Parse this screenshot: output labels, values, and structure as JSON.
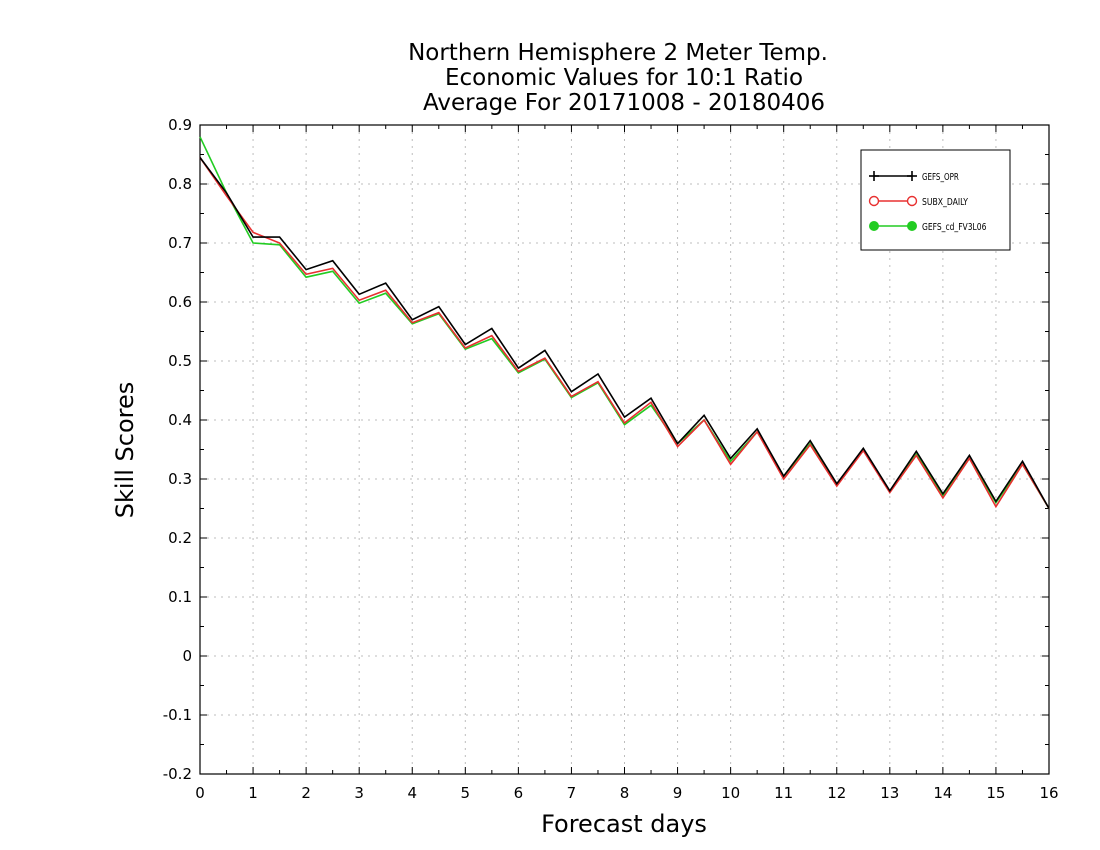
{
  "chart_data": {
    "type": "line",
    "title": [
      "Northern Hemisphere 2 Meter Temp.",
      "Economic Values for 10:1 Ratio",
      "Average For 20171008 - 20180406"
    ],
    "xlabel": "Forecast days",
    "ylabel": "Skill Scores",
    "xlim": [
      0,
      16
    ],
    "ylim": [
      -0.2,
      0.9
    ],
    "x_ticks": [
      "0",
      "1",
      "2",
      "3",
      "4",
      "5",
      "6",
      "7",
      "8",
      "9",
      "10",
      "11",
      "12",
      "13",
      "14",
      "15",
      "16"
    ],
    "y_ticks": [
      "0.9",
      "0.8",
      "0.7",
      "0.6",
      "0.5",
      "0.4",
      "0.3",
      "0.2",
      "0.1",
      "0",
      "-0.1",
      "-0.2"
    ],
    "grid": true,
    "legend_position": "top-right",
    "x": [
      0,
      0.5,
      1,
      1.5,
      2,
      2.5,
      3,
      3.5,
      4,
      4.5,
      5,
      5.5,
      6,
      6.5,
      7,
      7.5,
      8,
      8.5,
      9,
      9.5,
      10,
      10.5,
      11,
      11.5,
      12,
      12.5,
      13,
      13.5,
      14,
      14.5,
      15,
      15.5,
      16
    ],
    "series": [
      {
        "name": "GEFS_OPR",
        "color": "#000000",
        "marker": "plus",
        "values": [
          0.845,
          0.785,
          0.71,
          0.71,
          0.655,
          0.67,
          0.613,
          0.632,
          0.57,
          0.592,
          0.528,
          0.555,
          0.488,
          0.518,
          0.448,
          0.478,
          0.405,
          0.437,
          0.36,
          0.408,
          0.335,
          0.385,
          0.305,
          0.365,
          0.292,
          0.352,
          0.28,
          0.347,
          0.275,
          0.34,
          0.262,
          0.33,
          0.25
        ]
      },
      {
        "name": "SUBX_DAILY",
        "color": "#e83030",
        "marker": "open-circle",
        "values": [
          0.845,
          0.78,
          0.718,
          0.7,
          0.647,
          0.657,
          0.603,
          0.62,
          0.565,
          0.582,
          0.522,
          0.543,
          0.482,
          0.505,
          0.44,
          0.465,
          0.395,
          0.43,
          0.355,
          0.4,
          0.325,
          0.38,
          0.3,
          0.358,
          0.288,
          0.348,
          0.277,
          0.34,
          0.268,
          0.335,
          0.253,
          0.325,
          0.25
        ]
      },
      {
        "name": "GEFS_cd_FV3L06",
        "color": "#22cc22",
        "marker": "filled-circle",
        "values": [
          0.88,
          0.785,
          0.7,
          0.697,
          0.642,
          0.652,
          0.598,
          0.615,
          0.563,
          0.58,
          0.52,
          0.538,
          0.48,
          0.503,
          0.438,
          0.463,
          0.392,
          0.425,
          0.36,
          0.4,
          0.33,
          0.38,
          0.305,
          0.36,
          0.29,
          0.35,
          0.278,
          0.342,
          0.272,
          0.335,
          0.26,
          0.325,
          0.25
        ]
      }
    ]
  }
}
